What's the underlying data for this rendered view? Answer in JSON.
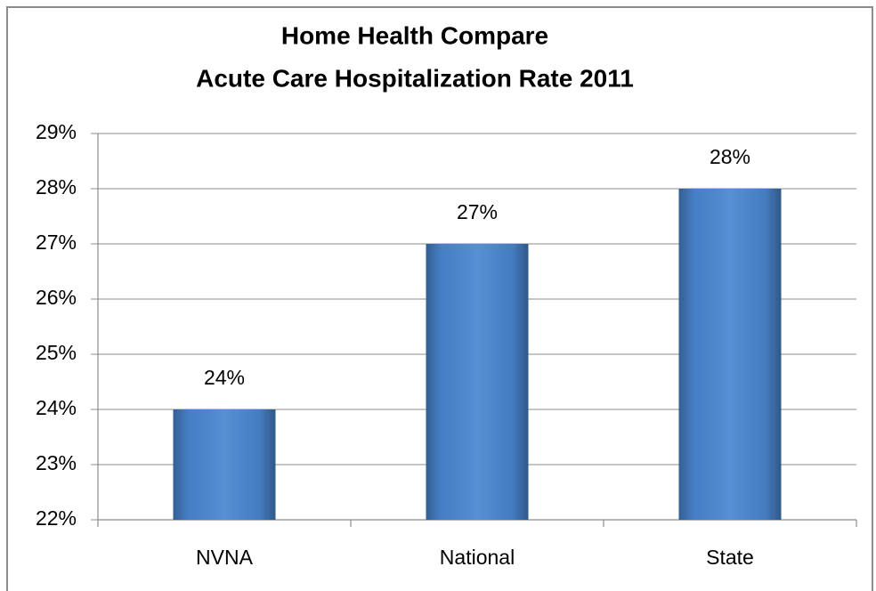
{
  "chart_data": {
    "type": "bar",
    "title": [
      "Home Health Compare",
      "Acute Care Hospitalization Rate 2011"
    ],
    "categories": [
      "NVNA",
      "National",
      "State"
    ],
    "values": [
      24,
      27,
      28
    ],
    "value_labels": [
      "24%",
      "27%",
      "28%"
    ],
    "color": "#4a86d0",
    "ylim": [
      22,
      29
    ],
    "yticks": [
      {
        "value": 22,
        "label": "22%"
      },
      {
        "value": 23,
        "label": "23%"
      },
      {
        "value": 24,
        "label": "24%"
      },
      {
        "value": 25,
        "label": "25%"
      },
      {
        "value": 26,
        "label": "26%"
      },
      {
        "value": 27,
        "label": "27%"
      },
      {
        "value": 28,
        "label": "28%"
      },
      {
        "value": 29,
        "label": "29%"
      }
    ],
    "grid": true
  }
}
